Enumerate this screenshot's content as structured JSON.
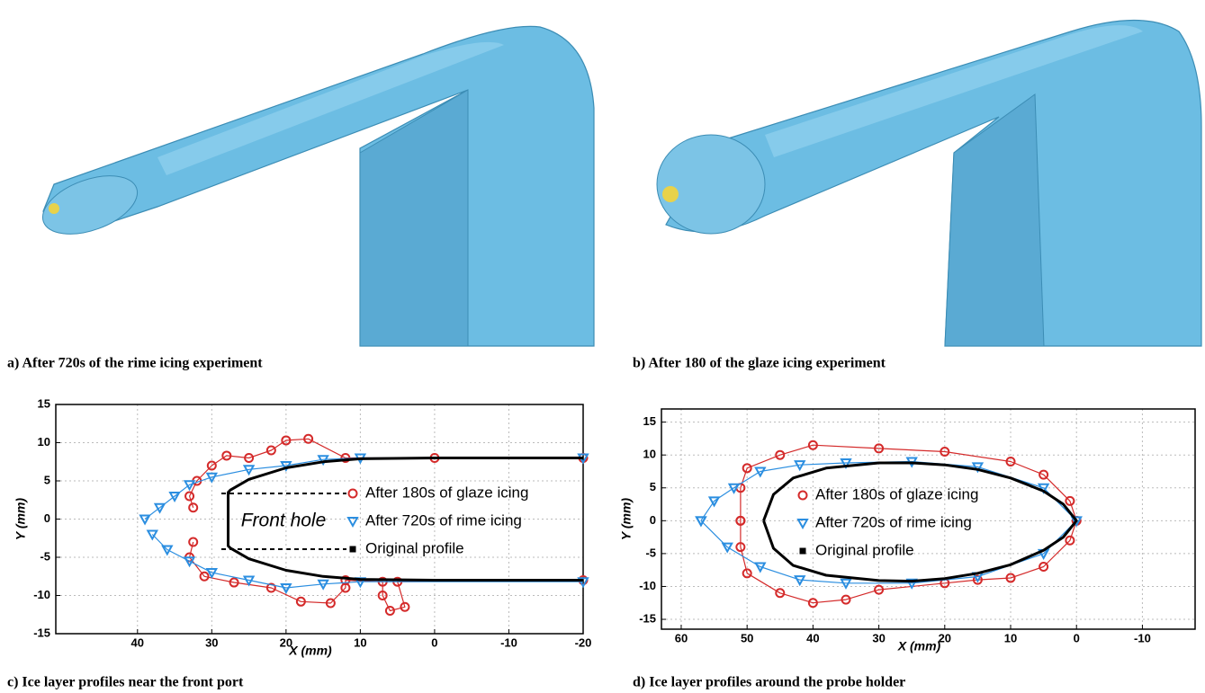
{
  "captions": [
    "a) After 720s of the rime icing experiment",
    "b) After 180 of the glaze icing experiment",
    "c) Ice layer profiles near the front port",
    "d) Ice layer profiles around the probe holder"
  ],
  "chart_data": [
    {
      "type": "scatter",
      "x_label": "X (mm)",
      "y_label": "Y (mm)",
      "annotation": "Front hole",
      "xlim": [
        51,
        -20
      ],
      "ylim": [
        -15,
        15
      ],
      "xticks": [
        40,
        30,
        20,
        10,
        0,
        -10,
        -20
      ],
      "yticks": [
        15,
        10,
        5,
        0,
        -5,
        -10,
        -15
      ],
      "grid": true,
      "series": [
        {
          "name": "After 180s of glaze icing",
          "color": "#d42a2a",
          "marker": "circle",
          "x": [
            -20,
            0,
            12,
            17,
            20,
            22,
            25,
            28,
            30,
            32,
            33,
            32.5,
            null,
            32.5,
            33,
            31,
            27,
            22,
            18,
            14,
            12,
            12,
            7,
            7,
            6,
            4,
            5,
            -20
          ],
          "values": [
            8,
            8,
            8,
            10.5,
            10.3,
            9,
            8,
            8.3,
            7,
            5,
            3,
            1.5,
            null,
            -3,
            -5,
            -7.5,
            -8.3,
            -9,
            -10.8,
            -11,
            -9,
            -8,
            -8.2,
            -10,
            -12,
            -11.5,
            -8.2,
            -8
          ]
        },
        {
          "name": "After 720s of rime icing",
          "color": "#2b8ee0",
          "marker": "triangle",
          "x": [
            -20,
            10,
            15,
            20,
            25,
            30,
            33,
            35,
            37,
            39,
            null,
            38,
            36,
            33,
            30,
            25,
            20,
            15,
            10,
            -20
          ],
          "values": [
            8,
            8,
            7.8,
            7,
            6.5,
            5.5,
            4.5,
            3,
            1.5,
            0,
            null,
            -2,
            -4,
            -5.5,
            -7,
            -8,
            -9,
            -8.5,
            -8.2,
            -8.2
          ]
        },
        {
          "name": "Original profile",
          "color": "#000000",
          "marker": "line",
          "x": [
            -20,
            0,
            10,
            15,
            20,
            25,
            27.5,
            27.8,
            27.8,
            27.5,
            25,
            20,
            15,
            10,
            0,
            -20
          ],
          "values": [
            8,
            8,
            7.9,
            7.5,
            6.7,
            5.2,
            3.8,
            3.5,
            -3.5,
            -3.8,
            -5.2,
            -6.7,
            -7.5,
            -7.9,
            -8,
            -8
          ]
        }
      ]
    },
    {
      "type": "scatter",
      "x_label": "X (mm)",
      "y_label": "Y (mm)",
      "xlim": [
        63,
        -18
      ],
      "ylim": [
        -16.5,
        17
      ],
      "xticks": [
        60,
        50,
        40,
        30,
        20,
        10,
        0,
        -10
      ],
      "yticks": [
        15,
        10,
        5,
        0,
        -5,
        -10,
        -15
      ],
      "grid": true,
      "series": [
        {
          "name": "After 180s of glaze icing",
          "color": "#d42a2a",
          "marker": "circle",
          "x": [
            51,
            51,
            50,
            45,
            40,
            30,
            20,
            10,
            5,
            1,
            0,
            1,
            5,
            10,
            15,
            20,
            30,
            35,
            40,
            45,
            50,
            51,
            51
          ],
          "values": [
            0,
            5,
            8,
            10,
            11.5,
            11,
            10.5,
            9,
            7,
            3,
            0,
            -3,
            -7,
            -8.7,
            -9,
            -9.5,
            -10.5,
            -12,
            -12.5,
            -11,
            -8,
            -4,
            0
          ]
        },
        {
          "name": "After 720s of rime icing",
          "color": "#2b8ee0",
          "marker": "triangle",
          "x": [
            57,
            55,
            52,
            48,
            42,
            35,
            25,
            15,
            5,
            0,
            5,
            15,
            25,
            35,
            42,
            48,
            53,
            57
          ],
          "values": [
            0,
            3,
            5,
            7.5,
            8.5,
            8.8,
            9,
            8.2,
            5,
            0,
            -5,
            -8.5,
            -9.5,
            -9.5,
            -9,
            -7,
            -4,
            0
          ]
        },
        {
          "name": "Original profile",
          "color": "#000000",
          "marker": "line",
          "x": [
            47.5,
            46,
            43,
            38,
            30,
            25,
            20,
            15,
            10,
            5,
            2,
            0,
            2,
            5,
            10,
            15,
            20,
            25,
            30,
            38,
            43,
            46,
            47.5
          ],
          "values": [
            0,
            4,
            6.5,
            8,
            8.8,
            8.8,
            8.5,
            7.8,
            6.5,
            4.5,
            2.5,
            0,
            -2.5,
            -4.5,
            -6.7,
            -8,
            -8.8,
            -9.2,
            -9.1,
            -8.3,
            -6.8,
            -4.2,
            0
          ]
        }
      ]
    }
  ]
}
